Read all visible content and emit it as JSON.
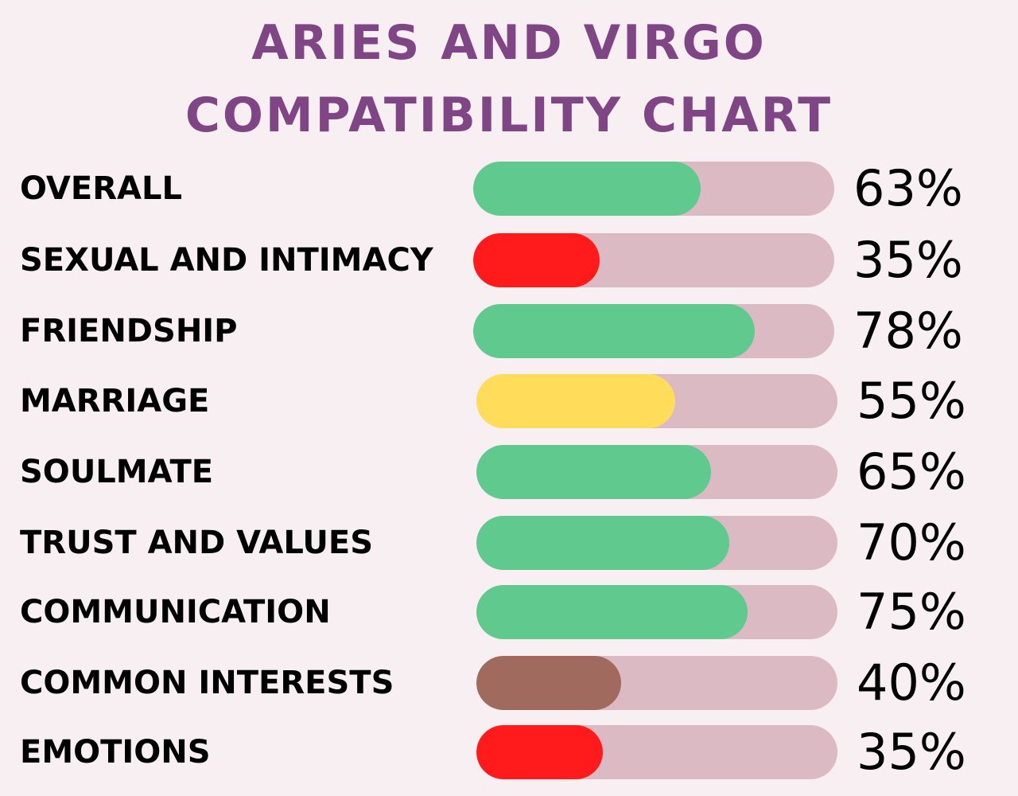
{
  "chart_data": {
    "type": "bar",
    "title_lines": [
      "ARIES AND VIRGO",
      "COMPATIBILITY CHART"
    ],
    "categories": [
      "OVERALL",
      "SEXUAL AND INTIMACY",
      "FRIENDSHIP",
      "MARRIAGE",
      "SOULMATE",
      "TRUST AND VALUES",
      "COMMUNICATION",
      "COMMON INTERESTS",
      "EMOTIONS"
    ],
    "values": [
      63,
      35,
      78,
      55,
      65,
      70,
      75,
      40,
      35
    ],
    "value_labels": [
      "63%",
      "35%",
      "78%",
      "55%",
      "65%",
      "70%",
      "75%",
      "40%",
      "35%"
    ],
    "bar_colors": [
      "#5fc98e",
      "#ff1b1b",
      "#5fc98e",
      "#ffdd5b",
      "#5fc98e",
      "#5fc98e",
      "#5fc98e",
      "#a16a5e",
      "#ff1b1b"
    ],
    "track_color": "#dbbac4",
    "xlim": [
      0,
      100
    ],
    "orientation": "horizontal"
  }
}
